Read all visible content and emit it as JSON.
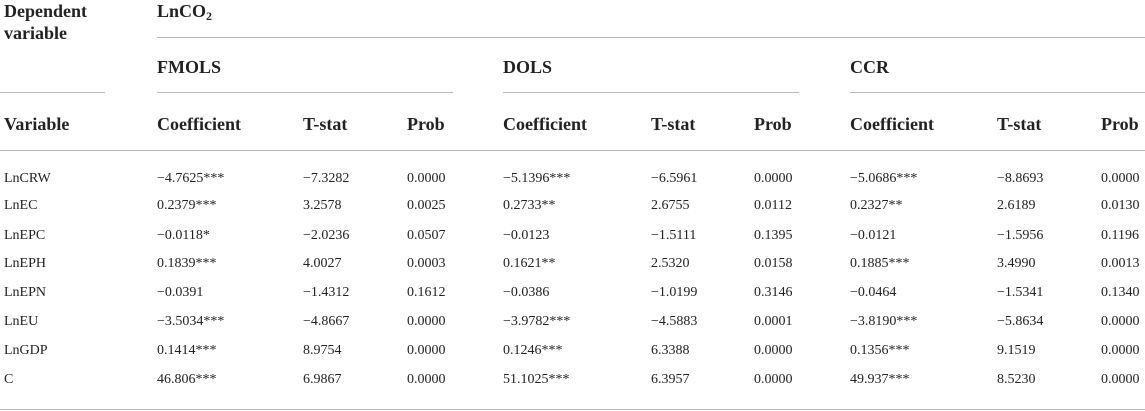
{
  "header": {
    "dependent_variable_lines": [
      "Dependent",
      "variable"
    ],
    "dependent_name_main": "LnCO",
    "dependent_name_sub": "2",
    "groups": [
      "FMOLS",
      "DOLS",
      "CCR"
    ],
    "variable_col": "Variable",
    "sub_cols": [
      "Coefficient",
      "T-stat",
      "Prob"
    ]
  },
  "rows": [
    {
      "variable": "LnCRW",
      "cells": [
        "−4.7625***",
        "−7.3282",
        "0.0000",
        "−5.1396***",
        "−6.5961",
        "0.0000",
        "−5.0686***",
        "−8.8693",
        "0.0000"
      ]
    },
    {
      "variable": "LnEC",
      "cells": [
        "0.2379***",
        "3.2578",
        "0.0025",
        "0.2733**",
        "2.6755",
        "0.0112",
        "0.2327**",
        "2.6189",
        "0.0130"
      ]
    },
    {
      "variable": "LnEPC",
      "cells": [
        "−0.0118*",
        "−2.0236",
        "0.0507",
        "−0.0123",
        "−1.5111",
        "0.1395",
        "−0.0121",
        "−1.5956",
        "0.1196"
      ]
    },
    {
      "variable": "LnEPH",
      "cells": [
        "0.1839***",
        "4.0027",
        "0.0003",
        "0.1621**",
        "2.5320",
        "0.0158",
        "0.1885***",
        "3.4990",
        "0.0013"
      ]
    },
    {
      "variable": "LnEPN",
      "cells": [
        "−0.0391",
        "−1.4312",
        "0.1612",
        "−0.0386",
        "−1.0199",
        "0.3146",
        "−0.0464",
        "−1.5341",
        "0.1340"
      ]
    },
    {
      "variable": "LnEU",
      "cells": [
        "−3.5034***",
        "−4.8667",
        "0.0000",
        "−3.9782***",
        "−4.5883",
        "0.0001",
        "−3.8190***",
        "−5.8634",
        "0.0000"
      ]
    },
    {
      "variable": "LnGDP",
      "cells": [
        "0.1414***",
        "8.9754",
        "0.0000",
        "0.1246***",
        "6.3388",
        "0.0000",
        "0.1356***",
        "9.1519",
        "0.0000"
      ]
    },
    {
      "variable": "C",
      "cells": [
        "46.806***",
        "6.9867",
        "0.0000",
        "51.1025***",
        "6.3957",
        "0.0000",
        "49.937***",
        "8.5230",
        "0.0000"
      ]
    }
  ]
}
